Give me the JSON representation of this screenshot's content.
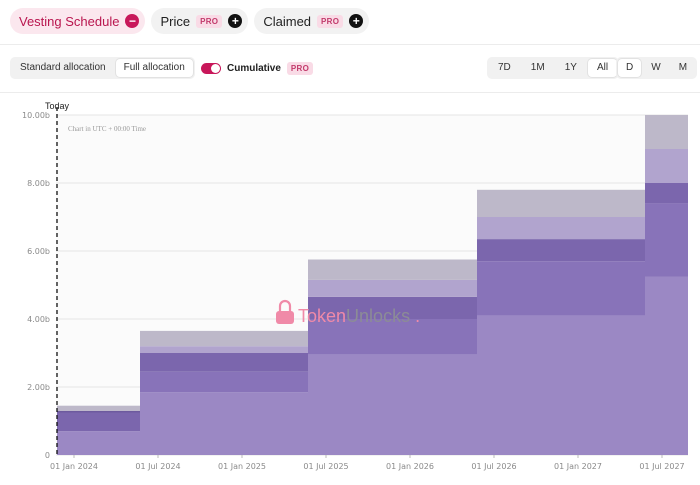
{
  "tabs": [
    {
      "label": "Vesting Schedule",
      "active": true,
      "pro": false,
      "action": "minus"
    },
    {
      "label": "Price",
      "active": false,
      "pro": true,
      "action": "plus"
    },
    {
      "label": "Claimed",
      "active": false,
      "pro": true,
      "action": "plus"
    }
  ],
  "pro_badge": "PRO",
  "allocation": {
    "options": [
      "Standard allocation",
      "Full allocation"
    ],
    "selected": "Full allocation"
  },
  "cumulative": {
    "label": "Cumulative",
    "on": true,
    "pro_badge": "PRO"
  },
  "time_range": {
    "options": [
      "7D",
      "1M",
      "1Y",
      "All"
    ],
    "selected": "All"
  },
  "granularity": {
    "options": [
      "D",
      "W",
      "M"
    ],
    "selected": "D"
  },
  "colors": {
    "accent": "#c8175a",
    "series": [
      "#9b88c4",
      "#8873b9",
      "#7b66ad",
      "#6d5a9e",
      "#b1a4ce",
      "#bdb8c9"
    ]
  },
  "chart_data": {
    "type": "area",
    "stacked": true,
    "step": true,
    "note": "Chart in UTC + 00:00 Time",
    "marker_label": "Today",
    "marker_date": "2023-12-10",
    "watermark": "TokenUnlocks.",
    "x_ticks": [
      "01 Jan 2024",
      "01 Jul 2024",
      "01 Jan 2025",
      "01 Jul 2025",
      "01 Jan 2026",
      "01 Jul 2026",
      "01 Jan 2027",
      "01 Jul 2027"
    ],
    "y_ticks": [
      "0",
      "2.00b",
      "4.00b",
      "6.00b",
      "8.00b",
      "10.00b"
    ],
    "ylim": [
      0,
      10
    ],
    "periods": [
      "Dec 2023",
      "Jun 2024",
      "Jun 2025",
      "Jun 2026",
      "Jun 2027"
    ],
    "series": [
      {
        "values": [
          0.7,
          1.85,
          2.95,
          4.1,
          5.25
        ]
      },
      {
        "values": [
          0.0,
          0.6,
          1.05,
          1.6,
          2.15
        ]
      },
      {
        "values": [
          0.55,
          0.55,
          0.65,
          0.65,
          0.6
        ]
      },
      {
        "values": [
          0.05,
          0.0,
          0.0,
          0.0,
          0.0
        ]
      },
      {
        "values": [
          0.0,
          0.2,
          0.5,
          0.65,
          1.0
        ]
      },
      {
        "values": [
          0.15,
          0.45,
          0.6,
          0.8,
          1.0
        ]
      }
    ]
  }
}
